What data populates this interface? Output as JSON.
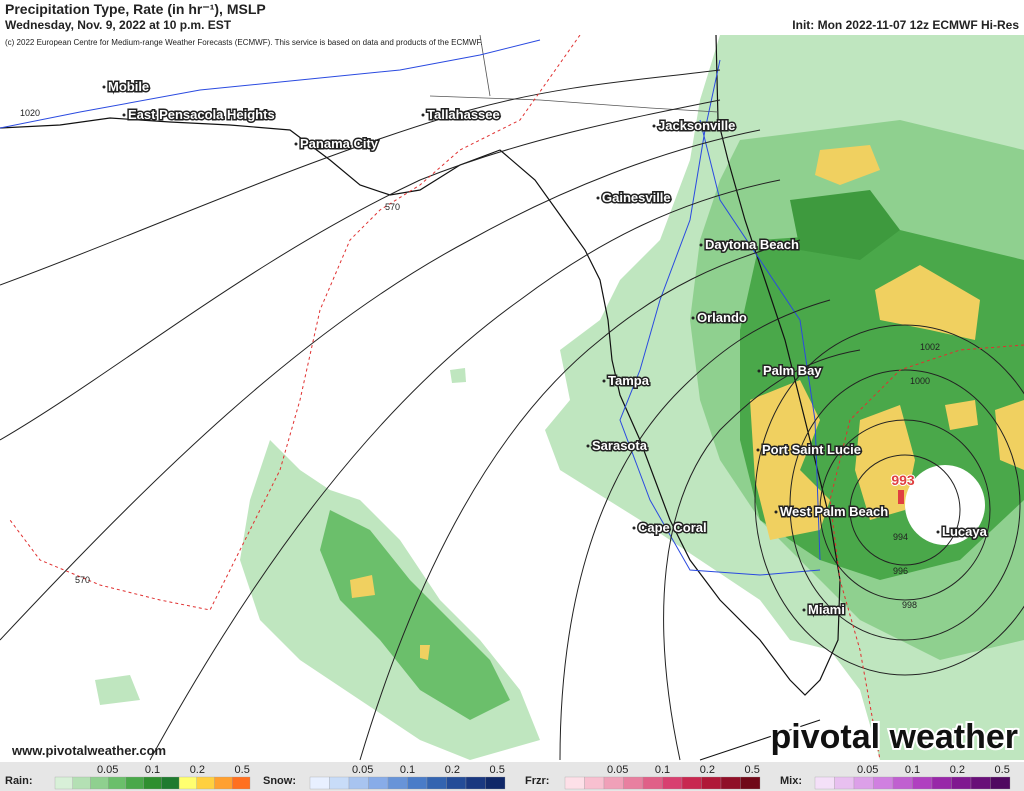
{
  "header": {
    "title": "Precipitation Type, Rate (in hr⁻¹), MSLP",
    "valid_time": "Wednesday, Nov. 9, 2022 at 10 p.m. EST",
    "init": "Init: Mon 2022-11-07 12z ECMWF Hi-Res",
    "copyright": "(c) 2022 European Centre for Medium-range Weather Forecasts (ECMWF). This service is based on data and products of the ECMWF."
  },
  "map": {
    "cities": [
      "Mobile",
      "East Pensacola Heights",
      "Tallahassee",
      "Panama City",
      "Jacksonville",
      "Gainesville",
      "Daytona Beach",
      "Orlando",
      "Palm Bay",
      "Tampa",
      "Sarasota",
      "Port Saint Lucie",
      "West Palm Beach",
      "Cape Coral",
      "Miami",
      "Lucaya"
    ],
    "contour_labels": [
      "1020",
      "570",
      "570",
      "1002",
      "1000",
      "994",
      "996",
      "998"
    ],
    "low_center": "993"
  },
  "footer": {
    "url": "www.pivotalweather.com",
    "logo": "pivotal weather"
  },
  "legend": [
    {
      "label": "Rain:",
      "ticks": [
        "0.05",
        "0.1",
        "0.2",
        "0.5"
      ],
      "colors": [
        "#d8f0d8",
        "#b4e0b4",
        "#8fd08f",
        "#6bbf6b",
        "#4aa84a",
        "#2f8f2f",
        "#1f7a2f",
        "#ffff70",
        "#ffd040",
        "#ffa030",
        "#ff7020"
      ]
    },
    {
      "label": "Snow:",
      "ticks": [
        "0.05",
        "0.1",
        "0.2",
        "0.5"
      ],
      "colors": [
        "#e8f0ff",
        "#c8dcf8",
        "#a8c4f0",
        "#88ace8",
        "#6894d8",
        "#4a7cc8",
        "#3464b0",
        "#244c98",
        "#1a3880",
        "#102868"
      ]
    },
    {
      "label": "Frzr:",
      "ticks": [
        "0.05",
        "0.1",
        "0.2",
        "0.5"
      ],
      "colors": [
        "#fde0e8",
        "#f8c0d0",
        "#f0a0b8",
        "#e880a0",
        "#e06088",
        "#d84070",
        "#c82850",
        "#b01838",
        "#901028",
        "#700818"
      ]
    },
    {
      "label": "Mix:",
      "ticks": [
        "0.05",
        "0.1",
        "0.2",
        "0.5"
      ],
      "colors": [
        "#f4e0f8",
        "#e8c0f0",
        "#dca0e8",
        "#d080e0",
        "#c060d0",
        "#b040c0",
        "#9828a8",
        "#801890",
        "#681078",
        "#500860"
      ]
    }
  ]
}
